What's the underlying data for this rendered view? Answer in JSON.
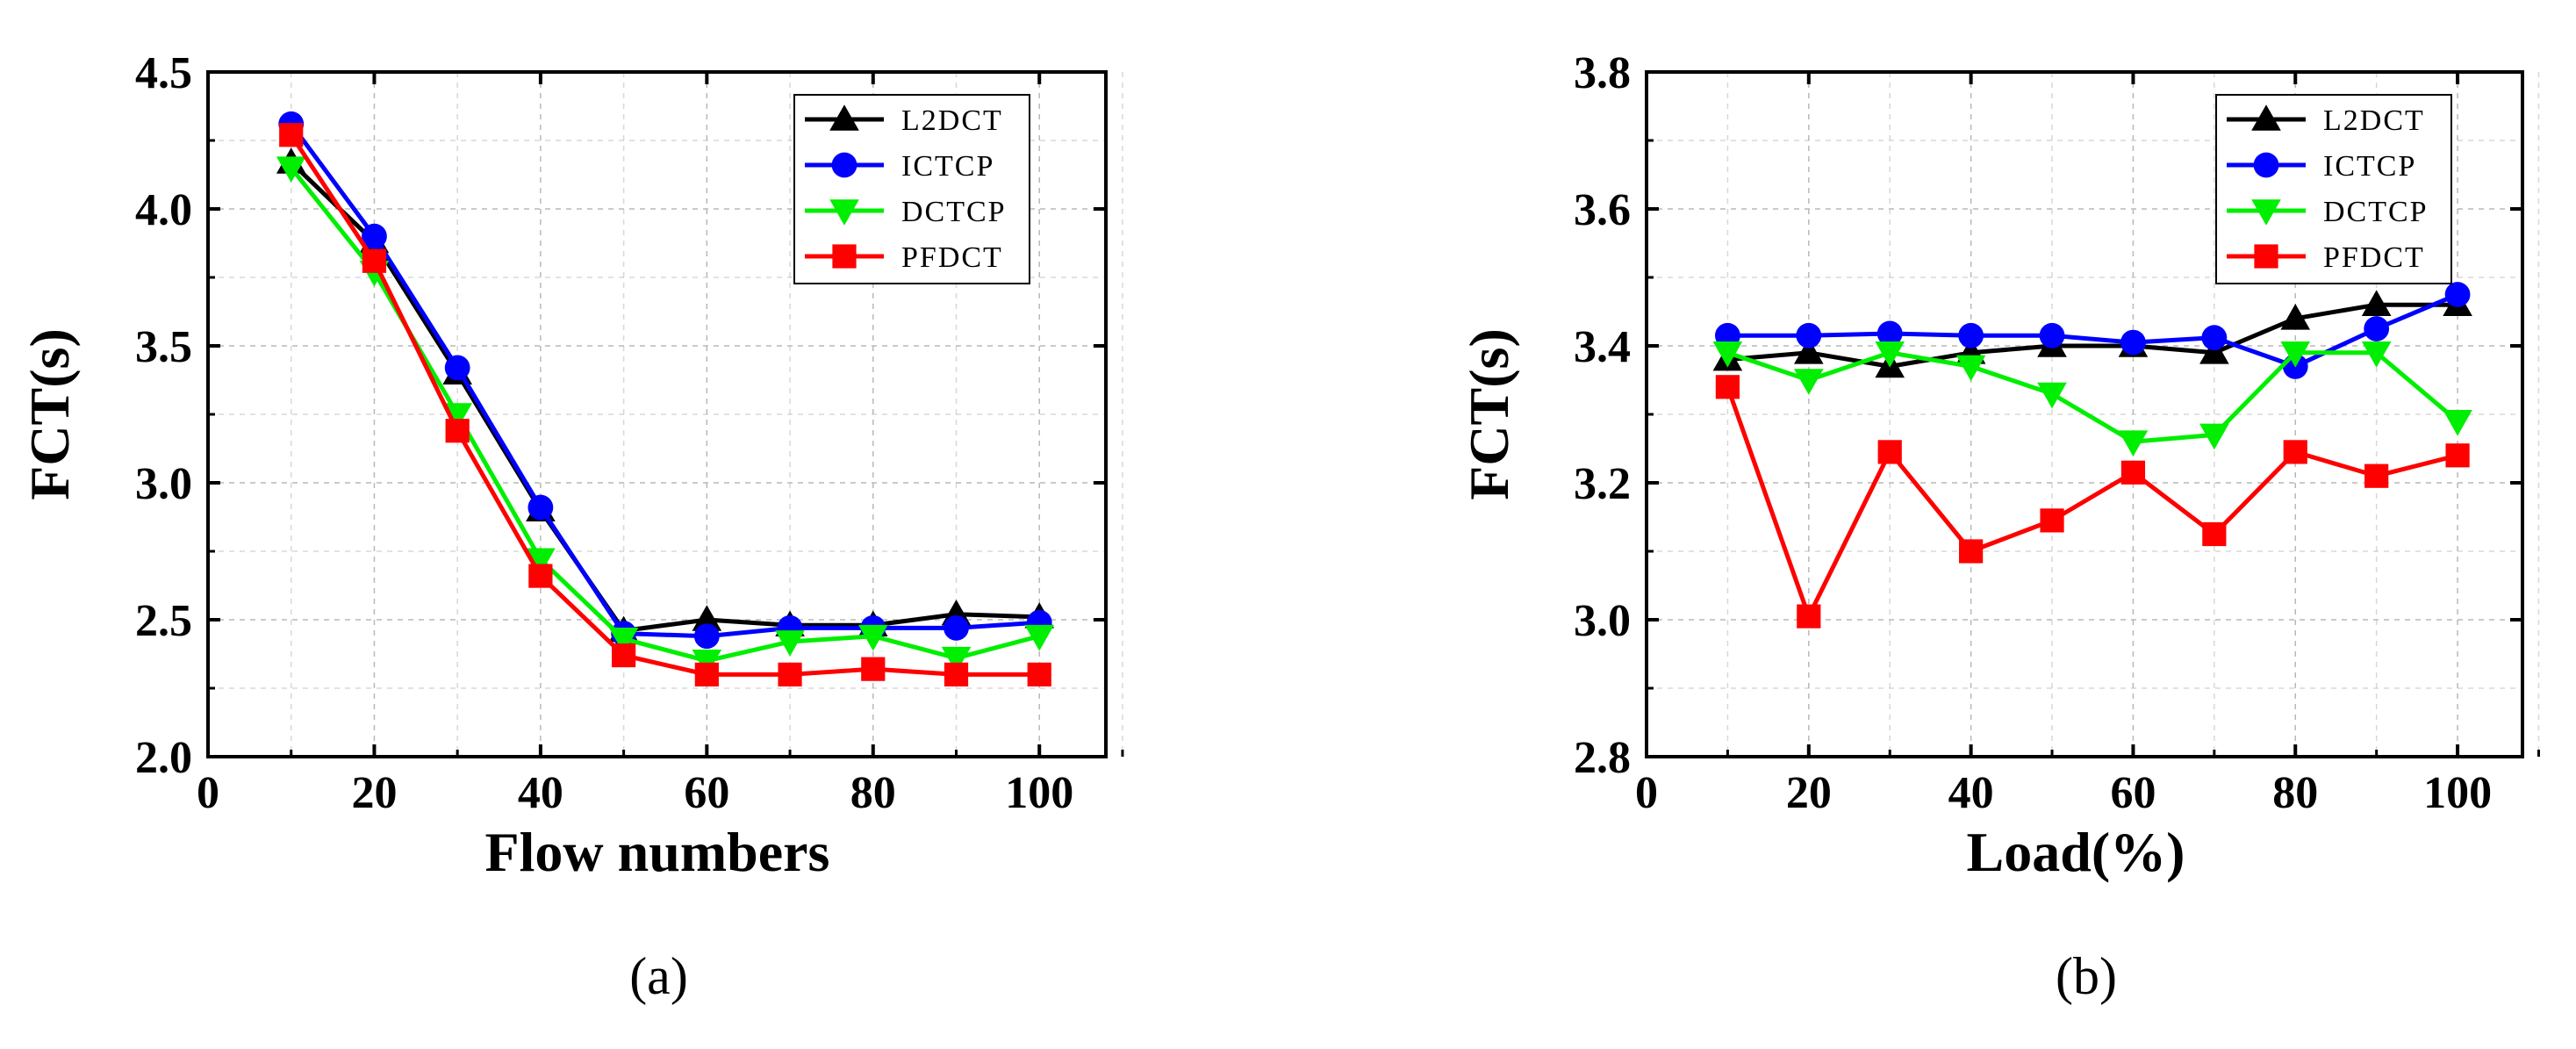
{
  "colors": {
    "L2DCT": "#000000",
    "ICTCP": "#0000ff",
    "DCTCP": "#00ee00",
    "PFDCT": "#ff0000"
  },
  "chart_data": [
    {
      "type": "line",
      "panel_label": "(a)",
      "xlabel": "Flow numbers",
      "ylabel": "FCT(s)",
      "xlim": [
        0,
        108
      ],
      "ylim": [
        2.0,
        4.5
      ],
      "xticks": [
        "0",
        "20",
        "40",
        "60",
        "80",
        "100"
      ],
      "yticks": [
        "2.0",
        "2.5",
        "3.0",
        "3.5",
        "4.0",
        "4.5"
      ],
      "grid": true,
      "legend_position": "top-right",
      "x": [
        10,
        20,
        30,
        40,
        50,
        60,
        70,
        80,
        90,
        100
      ],
      "series": [
        {
          "name": "L2DCT",
          "marker": "triangle-up",
          "values": [
            4.17,
            3.88,
            3.4,
            2.9,
            2.46,
            2.5,
            2.48,
            2.48,
            2.52,
            2.51
          ]
        },
        {
          "name": "ICTCP",
          "marker": "circle",
          "values": [
            4.31,
            3.9,
            3.42,
            2.91,
            2.45,
            2.44,
            2.47,
            2.47,
            2.47,
            2.49
          ]
        },
        {
          "name": "DCTCP",
          "marker": "triangle-down",
          "values": [
            4.15,
            3.77,
            3.25,
            2.72,
            2.43,
            2.35,
            2.42,
            2.44,
            2.36,
            2.44
          ]
        },
        {
          "name": "PFDCT",
          "marker": "square",
          "values": [
            4.27,
            3.81,
            3.19,
            2.66,
            2.37,
            2.3,
            2.3,
            2.32,
            2.3,
            2.3
          ]
        }
      ]
    },
    {
      "type": "line",
      "panel_label": "(b)",
      "xlabel": "Load(%)",
      "ylabel": "FCT(s)",
      "xlim": [
        0,
        108
      ],
      "ylim": [
        2.8,
        3.8
      ],
      "xticks": [
        "0",
        "20",
        "40",
        "60",
        "80",
        "100"
      ],
      "yticks": [
        "2.8",
        "3.0",
        "3.2",
        "3.4",
        "3.6",
        "3.8"
      ],
      "grid": true,
      "legend_position": "top-right",
      "x": [
        10,
        20,
        30,
        40,
        50,
        60,
        70,
        80,
        90,
        100
      ],
      "series": [
        {
          "name": "L2DCT",
          "marker": "triangle-up",
          "values": [
            3.38,
            3.39,
            3.37,
            3.39,
            3.4,
            3.4,
            3.39,
            3.44,
            3.46,
            3.46
          ]
        },
        {
          "name": "ICTCP",
          "marker": "circle",
          "values": [
            3.415,
            3.415,
            3.418,
            3.415,
            3.415,
            3.405,
            3.412,
            3.37,
            3.425,
            3.475
          ]
        },
        {
          "name": "DCTCP",
          "marker": "triangle-down",
          "values": [
            3.39,
            3.35,
            3.39,
            3.37,
            3.33,
            3.26,
            3.27,
            3.39,
            3.39,
            3.29
          ]
        },
        {
          "name": "PFDCT",
          "marker": "square",
          "values": [
            3.34,
            3.005,
            3.245,
            3.1,
            3.145,
            3.215,
            3.125,
            3.245,
            3.21,
            3.24
          ]
        }
      ]
    }
  ]
}
